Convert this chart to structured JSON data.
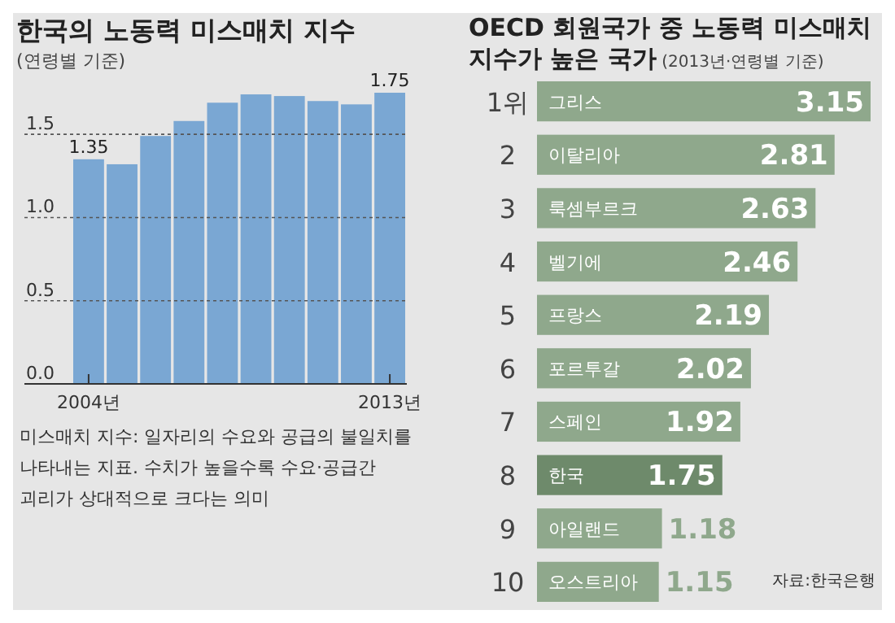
{
  "chart_data": [
    {
      "type": "bar",
      "title": "한국의 노동력 미스매치 지수",
      "subtitle": "(연령별 기준)",
      "categories": [
        "2004년",
        null,
        null,
        null,
        null,
        null,
        null,
        null,
        null,
        "2013년"
      ],
      "values": [
        1.35,
        1.32,
        1.49,
        1.58,
        1.69,
        1.74,
        1.73,
        1.7,
        1.68,
        1.75
      ],
      "value_labels": [
        "1.35",
        null,
        null,
        null,
        null,
        null,
        null,
        null,
        null,
        "1.75"
      ],
      "color": "#7aa7d3",
      "ylim": [
        0,
        1.75
      ],
      "yticks": [
        {
          "value": 0,
          "label": "0.0"
        },
        {
          "value": 0.5,
          "label": "0.5"
        },
        {
          "value": 1,
          "label": "1.0"
        },
        {
          "value": 1.5,
          "label": "1.5"
        }
      ],
      "grid": "y",
      "annotations": [
        "미스매치 지수: 일자리의 수요와 공급의 불일치를 나타내는 지표. 수치가 높을수록 수요·공급간 괴리가 상대적으로 크다는 의미"
      ]
    },
    {
      "type": "bar",
      "orientation": "horizontal",
      "title": "OECD 회원국가 중 노동력 미스매치 지수가 높은 국가",
      "subtitle": "(2013년·연령별 기준)",
      "categories": [
        "그리스",
        "이탈리아",
        "룩셈부르크",
        "벨기에",
        "프랑스",
        "포르투갈",
        "스페인",
        "한국",
        "아일랜드",
        "오스트리아"
      ],
      "values": [
        3.15,
        2.81,
        2.63,
        2.46,
        2.19,
        2.02,
        1.92,
        1.75,
        1.18,
        1.15
      ],
      "colors": [
        "#8fa88c",
        "#8fa88c",
        "#8fa88c",
        "#8fa88c",
        "#8fa88c",
        "#8fa88c",
        "#8fa88c",
        "#6e8a6b",
        "#8fa88c",
        "#8fa88c"
      ],
      "data_labels": true,
      "annotations": [
        "1위",
        "2",
        "3",
        "4",
        "5",
        "6",
        "7",
        "8",
        "9",
        "10",
        "자료:한국은행"
      ]
    }
  ]
}
